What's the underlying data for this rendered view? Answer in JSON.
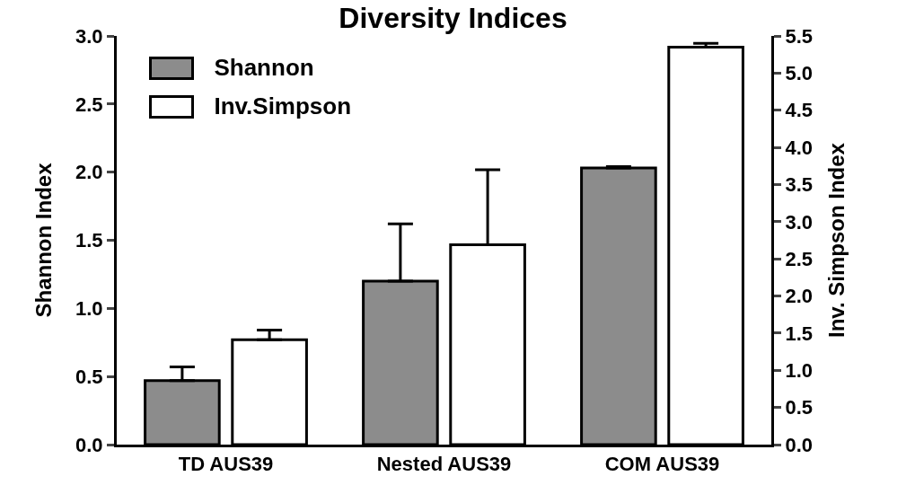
{
  "chart_data": {
    "type": "bar",
    "title": "Diversity Indices",
    "ylabel": "Shannon Index",
    "y2label": "Inv. Simpson Index",
    "categories": [
      "TD AUS39",
      "Nested AUS39",
      "COM AUS39"
    ],
    "series": [
      {
        "name": "Shannon",
        "color": "#8c8c8c",
        "values": [
          0.47,
          1.2,
          2.03
        ],
        "errors": [
          [
            0.47,
            0.57
          ],
          [
            1.2,
            1.62
          ],
          [
            2.03,
            2.04
          ]
        ]
      },
      {
        "name": "Inv.Simpson",
        "color": "#ffffff",
        "axis": "y2",
        "values": [
          1.41,
          2.69,
          5.35
        ],
        "errors": [
          [
            1.41,
            1.54
          ],
          [
            2.69,
            3.7
          ],
          [
            5.35,
            5.4
          ]
        ]
      }
    ],
    "ylim": [
      0,
      3
    ],
    "yticks": [
      {
        "value": 0,
        "label": "0.0"
      },
      {
        "value": 0.5,
        "label": "0.5"
      },
      {
        "value": 1,
        "label": "1.0"
      },
      {
        "value": 1.5,
        "label": "1.5"
      },
      {
        "value": 2,
        "label": "2.0"
      },
      {
        "value": 2.5,
        "label": "2.5"
      },
      {
        "value": 3,
        "label": "3.0"
      }
    ],
    "y2lim": [
      0,
      5.5
    ],
    "y2ticks": [
      {
        "value": 0,
        "label": "0.0"
      },
      {
        "value": 0.5,
        "label": "0.5"
      },
      {
        "value": 1,
        "label": "1.0"
      },
      {
        "value": 1.5,
        "label": "1.5"
      },
      {
        "value": 2,
        "label": "2.0"
      },
      {
        "value": 2.5,
        "label": "2.5"
      },
      {
        "value": 3,
        "label": "3.0"
      },
      {
        "value": 3.5,
        "label": "3.5"
      },
      {
        "value": 4,
        "label": "4.0"
      },
      {
        "value": 4.5,
        "label": "4.5"
      },
      {
        "value": 5,
        "label": "5.0"
      },
      {
        "value": 5.5,
        "label": "5.5"
      }
    ],
    "grid": false,
    "legend": "top left"
  }
}
